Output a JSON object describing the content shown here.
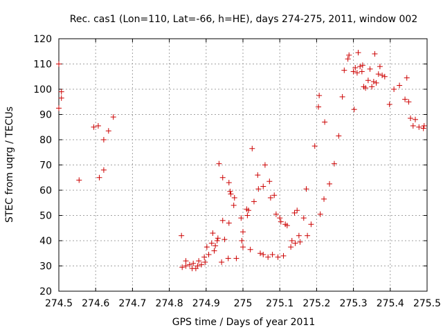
{
  "chart_data": {
    "type": "scatter",
    "title": "Rec. cas1 (Lon=110, Lat=-66, h=HE), days 274-275, 2011, window 002",
    "xlabel": "GPS time / Days of year 2011",
    "ylabel": "STEC from uqrg / TECUs",
    "xlim": [
      274.5,
      275.5
    ],
    "ylim": [
      20,
      120
    ],
    "xticks": [
      "274.5",
      "274.6",
      "274.7",
      "274.8",
      "274.9",
      "275",
      "275.1",
      "275.2",
      "275.3",
      "275.4",
      "275.5"
    ],
    "yticks": [
      "20",
      "30",
      "40",
      "50",
      "60",
      "70",
      "80",
      "90",
      "100",
      "110",
      "120"
    ],
    "grid": true,
    "marker": "plus",
    "color": "#cc0000",
    "points": [
      [
        274.5,
        110.0
      ],
      [
        274.5,
        92.5
      ],
      [
        274.507,
        99.0
      ],
      [
        274.507,
        96.5
      ],
      [
        274.555,
        64.0
      ],
      [
        274.595,
        85.0
      ],
      [
        274.607,
        85.5
      ],
      [
        274.61,
        65.0
      ],
      [
        274.622,
        68.0
      ],
      [
        274.622,
        80.0
      ],
      [
        274.635,
        83.5
      ],
      [
        274.648,
        89.0
      ],
      [
        274.833,
        42.0
      ],
      [
        274.835,
        29.5
      ],
      [
        274.845,
        30.0
      ],
      [
        274.845,
        32.0
      ],
      [
        274.855,
        30.5
      ],
      [
        274.862,
        29.0
      ],
      [
        274.865,
        31.0
      ],
      [
        274.872,
        29.0
      ],
      [
        274.877,
        30.0
      ],
      [
        274.88,
        32.0
      ],
      [
        274.887,
        30.5
      ],
      [
        274.895,
        33.5
      ],
      [
        274.897,
        31.5
      ],
      [
        274.902,
        37.5
      ],
      [
        274.907,
        34.5
      ],
      [
        274.915,
        39.0
      ],
      [
        274.918,
        43.0
      ],
      [
        274.922,
        36.0
      ],
      [
        274.925,
        38.0
      ],
      [
        274.93,
        40.0
      ],
      [
        274.932,
        41.0
      ],
      [
        274.935,
        70.5
      ],
      [
        274.942,
        31.5
      ],
      [
        274.945,
        48.0
      ],
      [
        274.945,
        65.0
      ],
      [
        274.95,
        40.5
      ],
      [
        274.96,
        33.0
      ],
      [
        274.962,
        47.0
      ],
      [
        274.962,
        63.0
      ],
      [
        274.965,
        59.5
      ],
      [
        274.967,
        58.5
      ],
      [
        274.975,
        54.0
      ],
      [
        274.977,
        57.0
      ],
      [
        274.982,
        33.0
      ],
      [
        274.995,
        49.0
      ],
      [
        274.997,
        40.0
      ],
      [
        275.0,
        43.5
      ],
      [
        275.0,
        37.5
      ],
      [
        275.01,
        52.5
      ],
      [
        275.012,
        50.0
      ],
      [
        275.015,
        52.0
      ],
      [
        275.02,
        36.5
      ],
      [
        275.025,
        76.5
      ],
      [
        275.03,
        55.5
      ],
      [
        275.04,
        66.0
      ],
      [
        275.042,
        60.5
      ],
      [
        275.047,
        35.0
      ],
      [
        275.055,
        61.5
      ],
      [
        275.055,
        34.5
      ],
      [
        275.06,
        70.0
      ],
      [
        275.068,
        33.5
      ],
      [
        275.072,
        63.5
      ],
      [
        275.075,
        57.0
      ],
      [
        275.08,
        34.5
      ],
      [
        275.085,
        58.0
      ],
      [
        275.09,
        50.5
      ],
      [
        275.095,
        33.5
      ],
      [
        275.1,
        49.0
      ],
      [
        275.103,
        47.5
      ],
      [
        275.11,
        34.0
      ],
      [
        275.115,
        46.5
      ],
      [
        275.12,
        46.0
      ],
      [
        275.13,
        37.5
      ],
      [
        275.133,
        40.0
      ],
      [
        275.14,
        51.0
      ],
      [
        275.142,
        39.0
      ],
      [
        275.147,
        52.0
      ],
      [
        275.152,
        42.0
      ],
      [
        275.155,
        39.5
      ],
      [
        275.165,
        49.0
      ],
      [
        275.172,
        60.5
      ],
      [
        275.175,
        42.0
      ],
      [
        275.185,
        46.5
      ],
      [
        275.195,
        77.5
      ],
      [
        275.205,
        93.0
      ],
      [
        275.207,
        97.5
      ],
      [
        275.21,
        50.5
      ],
      [
        275.22,
        56.5
      ],
      [
        275.222,
        87.0
      ],
      [
        275.235,
        62.5
      ],
      [
        275.248,
        70.5
      ],
      [
        275.26,
        81.5
      ],
      [
        275.27,
        97.0
      ],
      [
        275.275,
        107.5
      ],
      [
        275.285,
        112.0
      ],
      [
        275.288,
        113.5
      ],
      [
        275.3,
        107.0
      ],
      [
        275.302,
        92.0
      ],
      [
        275.305,
        108.5
      ],
      [
        275.31,
        106.5
      ],
      [
        275.313,
        114.5
      ],
      [
        275.318,
        109.0
      ],
      [
        275.323,
        107.0
      ],
      [
        275.325,
        109.5
      ],
      [
        275.328,
        101.0
      ],
      [
        275.333,
        100.5
      ],
      [
        275.34,
        103.5
      ],
      [
        275.345,
        108.0
      ],
      [
        275.35,
        101.0
      ],
      [
        275.355,
        103.0
      ],
      [
        275.358,
        114.0
      ],
      [
        275.362,
        102.5
      ],
      [
        275.368,
        106.0
      ],
      [
        275.372,
        109.0
      ],
      [
        275.378,
        105.5
      ],
      [
        275.385,
        105.0
      ],
      [
        275.398,
        94.0
      ],
      [
        275.41,
        100.0
      ],
      [
        275.425,
        101.5
      ],
      [
        275.44,
        96.0
      ],
      [
        275.445,
        104.5
      ],
      [
        275.45,
        95.0
      ],
      [
        275.455,
        88.5
      ],
      [
        275.462,
        85.5
      ],
      [
        275.468,
        88.0
      ],
      [
        275.478,
        85.0
      ],
      [
        275.49,
        84.5
      ],
      [
        275.492,
        85.5
      ]
    ]
  }
}
